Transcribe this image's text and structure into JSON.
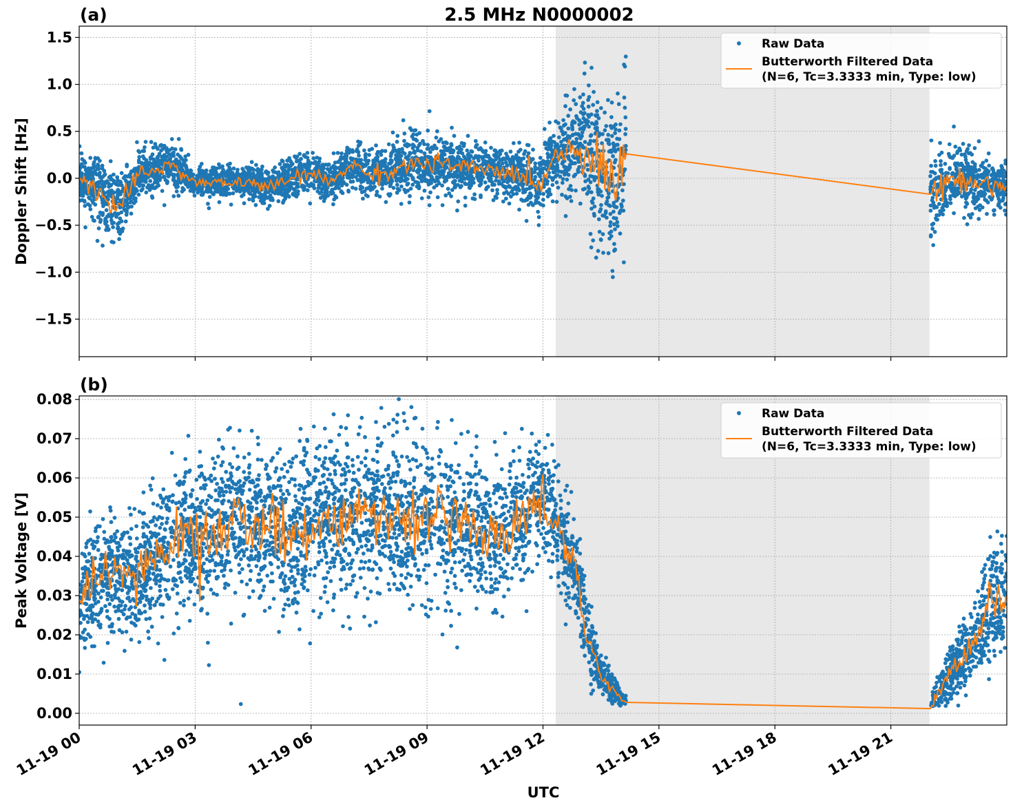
{
  "title": "2.5 MHz N0000002",
  "xlabel": "UTC",
  "colors": {
    "raw": "#1f77b4",
    "filtered": "#ff7f0e",
    "shade": "#e8e8e8"
  },
  "chart_data": [
    {
      "type": "scatter",
      "panel_label": "(a)",
      "ylabel": "Doppler Shift [Hz]",
      "xlim_hours": [
        0,
        24
      ],
      "ylim": [
        -1.9,
        1.62
      ],
      "yticks": [
        1.5,
        1.0,
        0.5,
        0.0,
        -0.5,
        -1.0,
        -1.5
      ],
      "ytick_labels": [
        "1.5",
        "1.0",
        "0.5",
        "0.0",
        "−0.5",
        "−1.0",
        "−1.5"
      ],
      "shaded_span_hours": [
        12.33,
        22.0
      ],
      "grid": true,
      "legend": {
        "position": "top-right",
        "entries": [
          "Raw Data",
          "Butterworth Filtered Data",
          "(N=6, Tc=3.3333 min, Type: low)"
        ]
      },
      "segments_hours": [
        [
          0,
          14.15
        ],
        [
          22.02,
          24
        ]
      ],
      "filtered": [
        [
          0,
          0
        ],
        [
          0.5,
          -0.1
        ],
        [
          0.75,
          -0.3
        ],
        [
          1,
          -0.3
        ],
        [
          1.3,
          -0.15
        ],
        [
          1.6,
          0.05
        ],
        [
          2,
          0.1
        ],
        [
          2.3,
          0.15
        ],
        [
          2.7,
          0.05
        ],
        [
          3,
          -0.05
        ],
        [
          3.5,
          -0.05
        ],
        [
          4,
          -0.05
        ],
        [
          4.5,
          -0.05
        ],
        [
          5,
          -0.1
        ],
        [
          5.5,
          0
        ],
        [
          6,
          0.05
        ],
        [
          6.5,
          -0.05
        ],
        [
          7,
          0.15
        ],
        [
          7.5,
          0.05
        ],
        [
          8,
          0.05
        ],
        [
          8.5,
          0.15
        ],
        [
          9,
          0.15
        ],
        [
          9.5,
          0.15
        ],
        [
          10,
          0.1
        ],
        [
          10.5,
          0.1
        ],
        [
          11,
          0.05
        ],
        [
          11.5,
          0.05
        ],
        [
          11.9,
          -0.1
        ],
        [
          12.2,
          0.2
        ],
        [
          12.6,
          0.3
        ],
        [
          13,
          0.35
        ],
        [
          13.5,
          0.1
        ],
        [
          14,
          -0.05
        ],
        [
          14.15,
          0.26
        ],
        [
          22.02,
          -0.17
        ],
        [
          22.5,
          0.0
        ],
        [
          23,
          -0.05
        ],
        [
          23.5,
          -0.05
        ],
        [
          24,
          -0.1
        ]
      ],
      "raw_spread": [
        [
          0,
          0.25
        ],
        [
          0.5,
          0.35
        ],
        [
          0.9,
          0.45
        ],
        [
          1.3,
          0.25
        ],
        [
          2,
          0.3
        ],
        [
          3,
          0.15
        ],
        [
          5,
          0.2
        ],
        [
          7,
          0.22
        ],
        [
          9,
          0.3
        ],
        [
          11,
          0.25
        ],
        [
          11.9,
          0.35
        ],
        [
          12.3,
          0.35
        ],
        [
          13,
          0.6
        ],
        [
          13.6,
          0.9
        ],
        [
          14.15,
          1.0
        ],
        [
          22.02,
          0.6
        ],
        [
          22.5,
          0.35
        ],
        [
          24,
          0.25
        ]
      ]
    },
    {
      "type": "scatter",
      "panel_label": "(b)",
      "ylabel": "Peak Voltage [V]",
      "xlim_hours": [
        0,
        24
      ],
      "ylim": [
        -0.003,
        0.0809
      ],
      "yticks": [
        0.08,
        0.07,
        0.06,
        0.05,
        0.04,
        0.03,
        0.02,
        0.01,
        0.0
      ],
      "ytick_labels": [
        "0.08",
        "0.07",
        "0.06",
        "0.05",
        "0.04",
        "0.03",
        "0.02",
        "0.01",
        "0.00"
      ],
      "xtick_hours": [
        0,
        3,
        6,
        9,
        12,
        15,
        18,
        21
      ],
      "xtick_labels": [
        "11-19 00",
        "11-19 03",
        "11-19 06",
        "11-19 09",
        "11-19 12",
        "11-19 15",
        "11-19 18",
        "11-19 21"
      ],
      "shaded_span_hours": [
        12.33,
        22.0
      ],
      "grid": true,
      "legend": {
        "position": "top-right",
        "entries": [
          "Raw Data",
          "Butterworth Filtered Data",
          "(N=6, Tc=3.3333 min, Type: low)"
        ]
      },
      "segments_hours": [
        [
          0,
          14.15
        ],
        [
          22.02,
          24
        ]
      ],
      "filtered": [
        [
          0,
          0.028
        ],
        [
          0.5,
          0.035
        ],
        [
          1,
          0.035
        ],
        [
          1.5,
          0.035
        ],
        [
          2,
          0.04
        ],
        [
          2.5,
          0.045
        ],
        [
          3,
          0.045
        ],
        [
          3.5,
          0.045
        ],
        [
          4,
          0.05
        ],
        [
          4.5,
          0.048
        ],
        [
          5,
          0.047
        ],
        [
          5.5,
          0.045
        ],
        [
          6,
          0.048
        ],
        [
          6.5,
          0.05
        ],
        [
          7,
          0.05
        ],
        [
          7.5,
          0.05
        ],
        [
          8,
          0.05
        ],
        [
          8.5,
          0.05
        ],
        [
          9,
          0.052
        ],
        [
          9.5,
          0.048
        ],
        [
          10,
          0.048
        ],
        [
          10.5,
          0.046
        ],
        [
          11,
          0.045
        ],
        [
          11.5,
          0.05
        ],
        [
          12,
          0.055
        ],
        [
          12.5,
          0.045
        ],
        [
          12.9,
          0.035
        ],
        [
          13.1,
          0.02
        ],
        [
          13.5,
          0.01
        ],
        [
          14,
          0.004
        ],
        [
          14.15,
          0.0028
        ],
        [
          22.02,
          0.0012
        ],
        [
          22.5,
          0.01
        ],
        [
          23,
          0.015
        ],
        [
          23.5,
          0.028
        ],
        [
          24,
          0.03
        ]
      ],
      "raw_spread": [
        [
          0,
          0.014
        ],
        [
          1,
          0.015
        ],
        [
          2,
          0.018
        ],
        [
          4,
          0.02
        ],
        [
          8,
          0.02
        ],
        [
          11,
          0.018
        ],
        [
          12,
          0.015
        ],
        [
          12.9,
          0.012
        ],
        [
          13.3,
          0.008
        ],
        [
          14,
          0.002
        ],
        [
          14.15,
          0.0015
        ],
        [
          22.02,
          0.003
        ],
        [
          23,
          0.01
        ],
        [
          24,
          0.016
        ]
      ]
    }
  ]
}
